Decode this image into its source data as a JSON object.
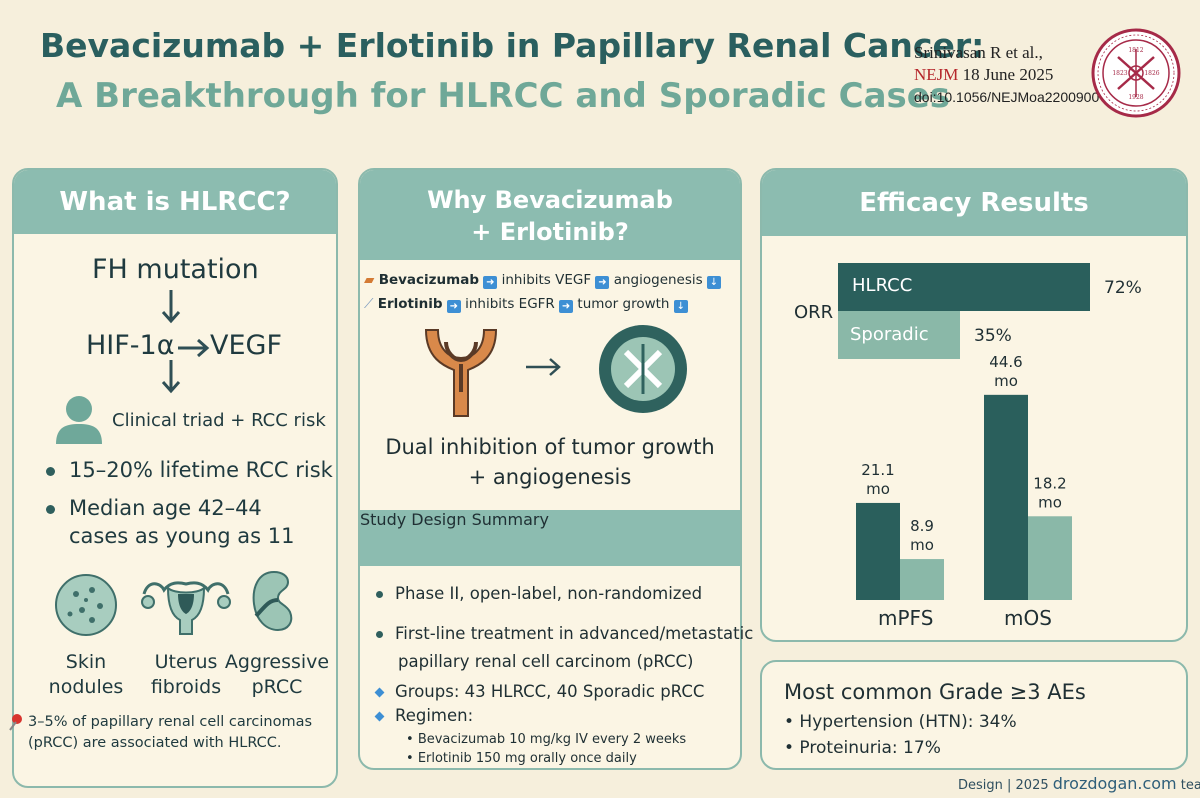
{
  "header": {
    "title_line1": "Bevacizumab + Erlotinib in Papillary Renal Cancer:",
    "title_line2": "A Breakthrough for HLRCC and Sporadic Cases",
    "citation_authors": "Srinivasan R et al.,",
    "citation_journal": "NEJM",
    "citation_date": "18 June 2025",
    "citation_doi": "doi:10.1056/NEJMoa2200900",
    "seal_year_left": "1812",
    "seal_year_top": "1812",
    "seal_year_1": "1823",
    "seal_year_2": "1826",
    "seal_year_3": "1928"
  },
  "hlrcc": {
    "heading": "What is HLRCC?",
    "flow_1": "FH mutation",
    "flow_2": "HIF-1α",
    "flow_3": "VEGF",
    "triad": "Clinical triad + RCC risk",
    "bullet_1": "15–20% lifetime RCC risk",
    "bullet_2_line1": "Median age 42–44",
    "bullet_2_line2": "cases as young as  11",
    "icons": [
      {
        "label_1": "Skin",
        "label_2": "nodules",
        "icon": "skin-nodules-icon"
      },
      {
        "label_1": "Uterus",
        "label_2": "fibroids",
        "icon": "uterus-icon"
      },
      {
        "label_1": "Aggressive",
        "label_2": "pRCC",
        "icon": "kidney-icon"
      }
    ],
    "note_line1": "3–5% of papillary renal cell carcinomas",
    "note_line2": "(pRCC) are associated with HLRCC."
  },
  "why": {
    "heading_line1": "Why Bevacizumab",
    "heading_line2": "+ Erlotinib?",
    "mech_1_drug": "Bevacizumab",
    "mech_1_target": "inhibits VEGF",
    "mech_1_effect": "angiogenesis",
    "mech_2_drug": "Erlotinib",
    "mech_2_target": "inhibits EGFR",
    "mech_2_effect": "tumor growth",
    "caption_line1": "Dual inhibition of tumor growth",
    "caption_line2": "+ angiogenesis"
  },
  "study": {
    "heading": "Study Design Summary",
    "item_1": "Phase II, open-label, non-randomized",
    "item_2_line1": "First-line treatment in advanced/metastatic",
    "item_2_line2": "papillary renal cell carcinom (pRCC)",
    "item_3": "Groups: 43 HLRCC, 40 Sporadic pRCC",
    "item_4": "Regimen:",
    "sub_1": "Bevacizumab 10 mg/kg IV every 2 weeks",
    "sub_2": "Erlotinib 150 mg orally once daily"
  },
  "efficacy": {
    "heading": "Efficacy Results",
    "orr_label": "ORR",
    "orr_hlrcc_label": "HLRCC",
    "orr_hlrcc_text": "72%",
    "orr_sporadic_label": "Sporadic",
    "orr_sporadic_text": "35%",
    "mpfs_label": "mPFS",
    "mos_label": "mOS",
    "mpfs_hlrcc_value": "21.1",
    "mpfs_sporadic_value": "8.9",
    "mos_hlrcc_value": "44.6",
    "mos_sporadic_value": "18.2",
    "unit": "mo",
    "colors": {
      "hlrcc": "#2a5f5c",
      "sporadic": "#8ab8a8"
    }
  },
  "chart_data": [
    {
      "type": "bar",
      "orientation": "horizontal",
      "categories": [
        "HLRCC",
        "Sporadic"
      ],
      "values": [
        72,
        35
      ],
      "ylabel": "ORR",
      "unit": "%"
    },
    {
      "type": "bar",
      "categories": [
        "mPFS",
        "mOS"
      ],
      "series": [
        {
          "name": "HLRCC",
          "values": [
            21.1,
            44.6
          ]
        },
        {
          "name": "Sporadic",
          "values": [
            8.9,
            18.2
          ]
        }
      ],
      "unit": "mo"
    }
  ],
  "ae": {
    "heading": "Most common Grade ≥3 AEs",
    "item_1": "• Hypertension (HTN): 34%",
    "item_2": "• Proteinuria: 17%"
  },
  "footer": {
    "design": "Design | 2025",
    "brand": "drozdogan.com",
    "team": "team"
  }
}
